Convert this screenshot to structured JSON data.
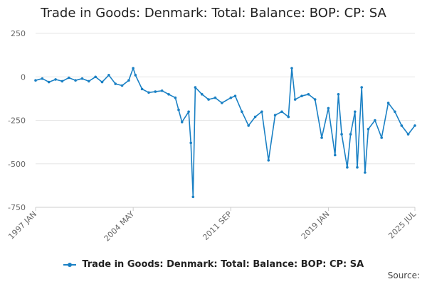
{
  "chart_data": {
    "type": "line",
    "title": "Trade in Goods: Denmark: Total: Balance: BOP: CP: SA",
    "xlabel": "",
    "ylabel": "",
    "ylim": [
      -750,
      250
    ],
    "yticks": [
      250,
      0,
      -250,
      -500,
      -750
    ],
    "xlim": [
      "1997-01",
      "2025-07"
    ],
    "xticks": [
      "1997 JAN",
      "2004 MAY",
      "2011 SEP",
      "2019 JAN",
      "2025 JUL"
    ],
    "legend_position": "bottom",
    "grid": true,
    "series": [
      {
        "name": "Trade in Goods: Denmark: Total: Balance: BOP: CP: SA",
        "color": "#1a80c4",
        "points": [
          [
            "1997-01",
            -20
          ],
          [
            "1997-07",
            -10
          ],
          [
            "1998-01",
            -30
          ],
          [
            "1998-07",
            -15
          ],
          [
            "1999-01",
            -25
          ],
          [
            "1999-07",
            -5
          ],
          [
            "2000-01",
            -20
          ],
          [
            "2000-07",
            -10
          ],
          [
            "2001-01",
            -25
          ],
          [
            "2001-07",
            0
          ],
          [
            "2002-01",
            -30
          ],
          [
            "2002-07",
            10
          ],
          [
            "2003-01",
            -40
          ],
          [
            "2003-07",
            -50
          ],
          [
            "2004-01",
            -20
          ],
          [
            "2004-05",
            50
          ],
          [
            "2004-07",
            10
          ],
          [
            "2005-01",
            -70
          ],
          [
            "2005-07",
            -90
          ],
          [
            "2006-01",
            -85
          ],
          [
            "2006-07",
            -80
          ],
          [
            "2007-01",
            -100
          ],
          [
            "2007-07",
            -120
          ],
          [
            "2007-10",
            -190
          ],
          [
            "2008-01",
            -260
          ],
          [
            "2008-07",
            -200
          ],
          [
            "2008-09",
            -380
          ],
          [
            "2008-11",
            -690
          ],
          [
            "2009-01",
            -60
          ],
          [
            "2009-07",
            -100
          ],
          [
            "2010-01",
            -130
          ],
          [
            "2010-07",
            -120
          ],
          [
            "2011-01",
            -150
          ],
          [
            "2011-09",
            -120
          ],
          [
            "2012-01",
            -110
          ],
          [
            "2012-07",
            -200
          ],
          [
            "2013-01",
            -280
          ],
          [
            "2013-07",
            -230
          ],
          [
            "2014-01",
            -200
          ],
          [
            "2014-07",
            -480
          ],
          [
            "2015-01",
            -220
          ],
          [
            "2015-07",
            -200
          ],
          [
            "2016-01",
            -230
          ],
          [
            "2016-04",
            50
          ],
          [
            "2016-07",
            -130
          ],
          [
            "2017-01",
            -110
          ],
          [
            "2017-07",
            -100
          ],
          [
            "2018-01",
            -130
          ],
          [
            "2018-07",
            -350
          ],
          [
            "2019-01",
            -180
          ],
          [
            "2019-07",
            -450
          ],
          [
            "2019-10",
            -100
          ],
          [
            "2020-01",
            -330
          ],
          [
            "2020-06",
            -520
          ],
          [
            "2020-09",
            -330
          ],
          [
            "2021-01",
            -200
          ],
          [
            "2021-03",
            -520
          ],
          [
            "2021-07",
            -60
          ],
          [
            "2021-10",
            -550
          ],
          [
            "2022-01",
            -300
          ],
          [
            "2022-07",
            -250
          ],
          [
            "2023-01",
            -350
          ],
          [
            "2023-07",
            -150
          ],
          [
            "2024-01",
            -200
          ],
          [
            "2024-07",
            -280
          ],
          [
            "2025-01",
            -330
          ],
          [
            "2025-07",
            -280
          ]
        ]
      }
    ]
  },
  "source_label": "Source:"
}
